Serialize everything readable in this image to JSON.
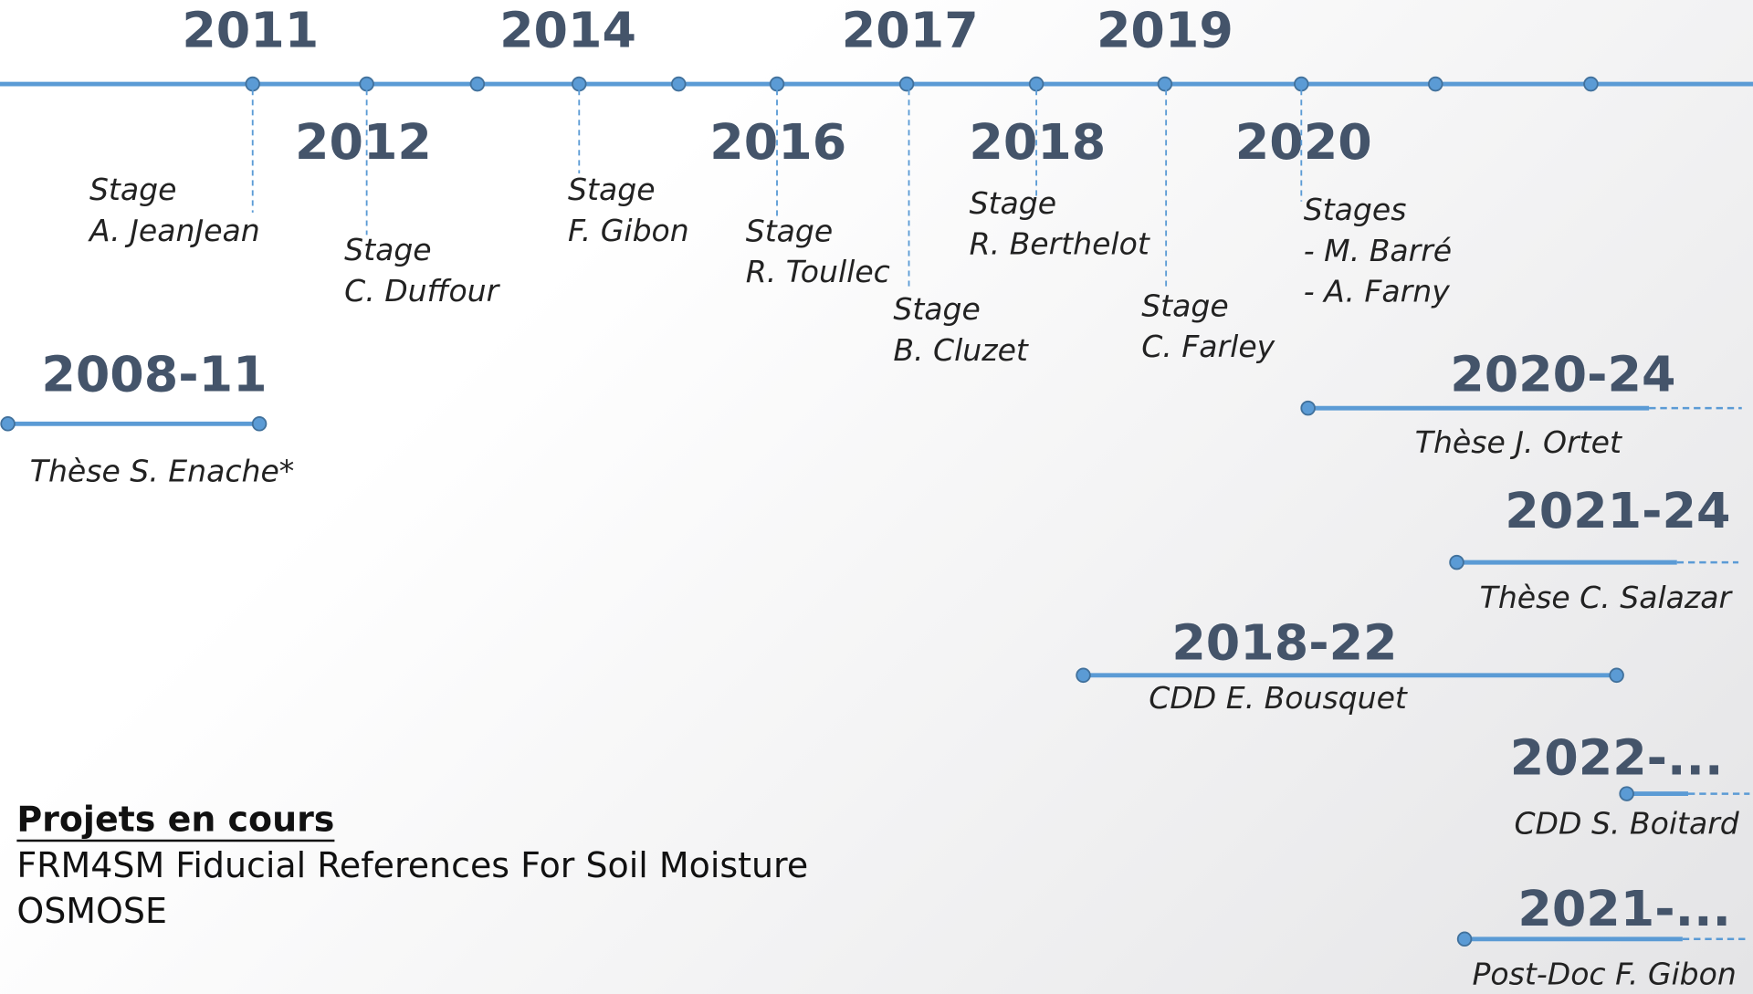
{
  "years": [
    "2011",
    "2014",
    "2017",
    "2019",
    "2012",
    "2016",
    "2018",
    "2020"
  ],
  "internships": [
    {
      "lines": [
        "Stage",
        "A. JeanJean"
      ]
    },
    {
      "lines": [
        "Stage",
        "C. Duffour"
      ]
    },
    {
      "lines": [
        "Stage",
        "F. Gibon"
      ]
    },
    {
      "lines": [
        "Stage",
        "R. Toullec"
      ]
    },
    {
      "lines": [
        "Stage",
        "B. Cluzet"
      ]
    },
    {
      "lines": [
        "Stage",
        "R. Berthelot"
      ]
    },
    {
      "lines": [
        "Stage",
        "C. Farley"
      ]
    },
    {
      "lines": [
        "Stages",
        "- M. Barré",
        "- A. Farny"
      ]
    }
  ],
  "periods": [
    {
      "years": "2008-11",
      "label": "Thèse S. Enache*"
    },
    {
      "years": "2020-24",
      "label": "Thèse J. Ortet"
    },
    {
      "years": "2021-24",
      "label": "Thèse C. Salazar"
    },
    {
      "years": "2018-22",
      "label": "CDD E. Bousquet"
    },
    {
      "years": "2022-...",
      "label": "CDD S. Boitard"
    },
    {
      "years": "2021-...",
      "label": "Post-Doc F. Gibon"
    }
  ],
  "projects": {
    "title": "Projets en cours",
    "items": [
      "FRM4SM Fiducial References For Soil Moisture",
      "OSMOSE"
    ]
  }
}
